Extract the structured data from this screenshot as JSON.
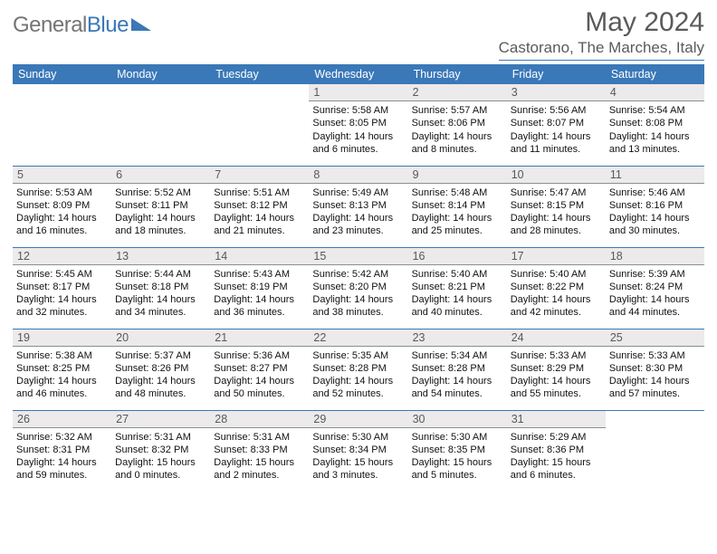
{
  "logo": {
    "part1": "General",
    "part2": "Blue"
  },
  "header": {
    "title": "May 2024",
    "location": "Castorano, The Marches, Italy"
  },
  "style": {
    "accent": "#3a78b8",
    "header_bg": "#3a78b8",
    "header_text": "#ffffff",
    "daynum_bg": "#eceaea",
    "daynum_color": "#595959",
    "body_text": "#111111",
    "rule_color": "#3a78b8",
    "title_color": "#5a5a5a",
    "logo_gray": "#757575"
  },
  "weekdays": [
    "Sunday",
    "Monday",
    "Tuesday",
    "Wednesday",
    "Thursday",
    "Friday",
    "Saturday"
  ],
  "days": [
    {
      "n": "",
      "lines": []
    },
    {
      "n": "",
      "lines": []
    },
    {
      "n": "",
      "lines": []
    },
    {
      "n": "1",
      "lines": [
        "Sunrise: 5:58 AM",
        "Sunset: 8:05 PM",
        "Daylight: 14 hours",
        "and 6 minutes."
      ]
    },
    {
      "n": "2",
      "lines": [
        "Sunrise: 5:57 AM",
        "Sunset: 8:06 PM",
        "Daylight: 14 hours",
        "and 8 minutes."
      ]
    },
    {
      "n": "3",
      "lines": [
        "Sunrise: 5:56 AM",
        "Sunset: 8:07 PM",
        "Daylight: 14 hours",
        "and 11 minutes."
      ]
    },
    {
      "n": "4",
      "lines": [
        "Sunrise: 5:54 AM",
        "Sunset: 8:08 PM",
        "Daylight: 14 hours",
        "and 13 minutes."
      ]
    },
    {
      "n": "5",
      "lines": [
        "Sunrise: 5:53 AM",
        "Sunset: 8:09 PM",
        "Daylight: 14 hours",
        "and 16 minutes."
      ]
    },
    {
      "n": "6",
      "lines": [
        "Sunrise: 5:52 AM",
        "Sunset: 8:11 PM",
        "Daylight: 14 hours",
        "and 18 minutes."
      ]
    },
    {
      "n": "7",
      "lines": [
        "Sunrise: 5:51 AM",
        "Sunset: 8:12 PM",
        "Daylight: 14 hours",
        "and 21 minutes."
      ]
    },
    {
      "n": "8",
      "lines": [
        "Sunrise: 5:49 AM",
        "Sunset: 8:13 PM",
        "Daylight: 14 hours",
        "and 23 minutes."
      ]
    },
    {
      "n": "9",
      "lines": [
        "Sunrise: 5:48 AM",
        "Sunset: 8:14 PM",
        "Daylight: 14 hours",
        "and 25 minutes."
      ]
    },
    {
      "n": "10",
      "lines": [
        "Sunrise: 5:47 AM",
        "Sunset: 8:15 PM",
        "Daylight: 14 hours",
        "and 28 minutes."
      ]
    },
    {
      "n": "11",
      "lines": [
        "Sunrise: 5:46 AM",
        "Sunset: 8:16 PM",
        "Daylight: 14 hours",
        "and 30 minutes."
      ]
    },
    {
      "n": "12",
      "lines": [
        "Sunrise: 5:45 AM",
        "Sunset: 8:17 PM",
        "Daylight: 14 hours",
        "and 32 minutes."
      ]
    },
    {
      "n": "13",
      "lines": [
        "Sunrise: 5:44 AM",
        "Sunset: 8:18 PM",
        "Daylight: 14 hours",
        "and 34 minutes."
      ]
    },
    {
      "n": "14",
      "lines": [
        "Sunrise: 5:43 AM",
        "Sunset: 8:19 PM",
        "Daylight: 14 hours",
        "and 36 minutes."
      ]
    },
    {
      "n": "15",
      "lines": [
        "Sunrise: 5:42 AM",
        "Sunset: 8:20 PM",
        "Daylight: 14 hours",
        "and 38 minutes."
      ]
    },
    {
      "n": "16",
      "lines": [
        "Sunrise: 5:40 AM",
        "Sunset: 8:21 PM",
        "Daylight: 14 hours",
        "and 40 minutes."
      ]
    },
    {
      "n": "17",
      "lines": [
        "Sunrise: 5:40 AM",
        "Sunset: 8:22 PM",
        "Daylight: 14 hours",
        "and 42 minutes."
      ]
    },
    {
      "n": "18",
      "lines": [
        "Sunrise: 5:39 AM",
        "Sunset: 8:24 PM",
        "Daylight: 14 hours",
        "and 44 minutes."
      ]
    },
    {
      "n": "19",
      "lines": [
        "Sunrise: 5:38 AM",
        "Sunset: 8:25 PM",
        "Daylight: 14 hours",
        "and 46 minutes."
      ]
    },
    {
      "n": "20",
      "lines": [
        "Sunrise: 5:37 AM",
        "Sunset: 8:26 PM",
        "Daylight: 14 hours",
        "and 48 minutes."
      ]
    },
    {
      "n": "21",
      "lines": [
        "Sunrise: 5:36 AM",
        "Sunset: 8:27 PM",
        "Daylight: 14 hours",
        "and 50 minutes."
      ]
    },
    {
      "n": "22",
      "lines": [
        "Sunrise: 5:35 AM",
        "Sunset: 8:28 PM",
        "Daylight: 14 hours",
        "and 52 minutes."
      ]
    },
    {
      "n": "23",
      "lines": [
        "Sunrise: 5:34 AM",
        "Sunset: 8:28 PM",
        "Daylight: 14 hours",
        "and 54 minutes."
      ]
    },
    {
      "n": "24",
      "lines": [
        "Sunrise: 5:33 AM",
        "Sunset: 8:29 PM",
        "Daylight: 14 hours",
        "and 55 minutes."
      ]
    },
    {
      "n": "25",
      "lines": [
        "Sunrise: 5:33 AM",
        "Sunset: 8:30 PM",
        "Daylight: 14 hours",
        "and 57 minutes."
      ]
    },
    {
      "n": "26",
      "lines": [
        "Sunrise: 5:32 AM",
        "Sunset: 8:31 PM",
        "Daylight: 14 hours",
        "and 59 minutes."
      ]
    },
    {
      "n": "27",
      "lines": [
        "Sunrise: 5:31 AM",
        "Sunset: 8:32 PM",
        "Daylight: 15 hours",
        "and 0 minutes."
      ]
    },
    {
      "n": "28",
      "lines": [
        "Sunrise: 5:31 AM",
        "Sunset: 8:33 PM",
        "Daylight: 15 hours",
        "and 2 minutes."
      ]
    },
    {
      "n": "29",
      "lines": [
        "Sunrise: 5:30 AM",
        "Sunset: 8:34 PM",
        "Daylight: 15 hours",
        "and 3 minutes."
      ]
    },
    {
      "n": "30",
      "lines": [
        "Sunrise: 5:30 AM",
        "Sunset: 8:35 PM",
        "Daylight: 15 hours",
        "and 5 minutes."
      ]
    },
    {
      "n": "31",
      "lines": [
        "Sunrise: 5:29 AM",
        "Sunset: 8:36 PM",
        "Daylight: 15 hours",
        "and 6 minutes."
      ]
    },
    {
      "n": "",
      "lines": []
    }
  ]
}
